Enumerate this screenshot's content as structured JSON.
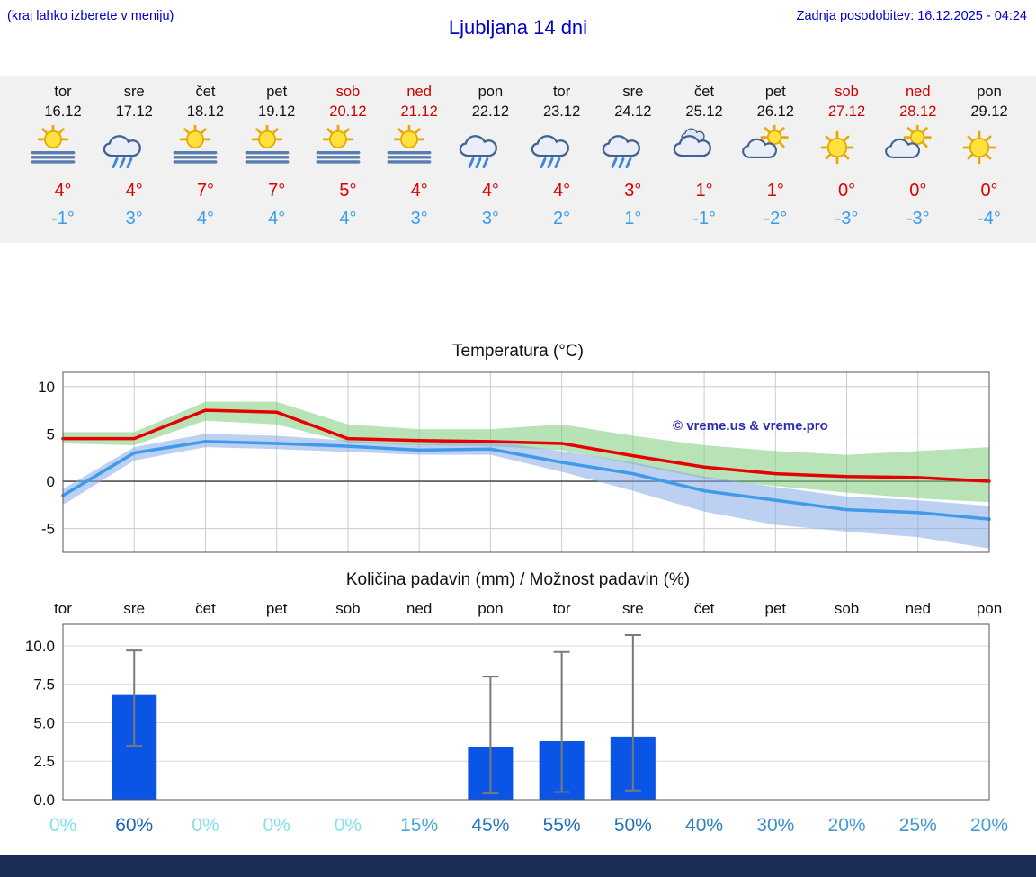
{
  "header": {
    "hint": "(kraj lahko izberete v meniju)",
    "title": "Ljubljana 14 dni",
    "updated": "Zadnja posodobitev: 16.12.2025 - 04:24"
  },
  "colors": {
    "header_text": "#0000cc",
    "strip_bg": "#f1f1f1",
    "weekend": "#cc0000",
    "weekday": "#111111",
    "high_temp": "#dd0000",
    "low_temp": "#3a9ce8",
    "footer_bar": "#1b2d55"
  },
  "forecast_days": [
    {
      "name": "tor",
      "date": "16.12",
      "weekend": false,
      "icon": "sun-fog",
      "high": "4°",
      "low": "-1°"
    },
    {
      "name": "sre",
      "date": "17.12",
      "weekend": false,
      "icon": "rain",
      "high": "4°",
      "low": "3°"
    },
    {
      "name": "čet",
      "date": "18.12",
      "weekend": false,
      "icon": "sun-fog",
      "high": "7°",
      "low": "4°"
    },
    {
      "name": "pet",
      "date": "19.12",
      "weekend": false,
      "icon": "sun-fog",
      "high": "7°",
      "low": "4°"
    },
    {
      "name": "sob",
      "date": "20.12",
      "weekend": true,
      "icon": "sun-fog",
      "high": "5°",
      "low": "4°"
    },
    {
      "name": "ned",
      "date": "21.12",
      "weekend": true,
      "icon": "sun-fog",
      "high": "4°",
      "low": "3°"
    },
    {
      "name": "pon",
      "date": "22.12",
      "weekend": false,
      "icon": "rain",
      "high": "4°",
      "low": "3°"
    },
    {
      "name": "tor",
      "date": "23.12",
      "weekend": false,
      "icon": "rain",
      "high": "4°",
      "low": "2°"
    },
    {
      "name": "sre",
      "date": "24.12",
      "weekend": false,
      "icon": "rain",
      "high": "3°",
      "low": "1°"
    },
    {
      "name": "čet",
      "date": "25.12",
      "weekend": false,
      "icon": "cloudy",
      "high": "1°",
      "low": "-1°"
    },
    {
      "name": "pet",
      "date": "26.12",
      "weekend": false,
      "icon": "partly",
      "high": "1°",
      "low": "-2°"
    },
    {
      "name": "sob",
      "date": "27.12",
      "weekend": true,
      "icon": "sun",
      "high": "0°",
      "low": "-3°"
    },
    {
      "name": "ned",
      "date": "28.12",
      "weekend": true,
      "icon": "partly",
      "high": "0°",
      "low": "-3°"
    },
    {
      "name": "pon",
      "date": "29.12",
      "weekend": false,
      "icon": "sun",
      "high": "0°",
      "low": "-4°"
    }
  ],
  "chart_data": [
    {
      "type": "line",
      "title": "Temperatura (°C)",
      "x": [
        "tor",
        "sre",
        "čet",
        "pet",
        "sob",
        "ned",
        "pon",
        "tor",
        "sre",
        "čet",
        "pet",
        "sob",
        "ned",
        "pon"
      ],
      "series": [
        {
          "name": "max temp",
          "color": "#e60000",
          "values": [
            4.5,
            4.5,
            7.5,
            7.3,
            4.5,
            4.3,
            4.2,
            4.0,
            2.7,
            1.5,
            0.8,
            0.5,
            0.4,
            0.0
          ]
        },
        {
          "name": "min temp",
          "color": "#3f9bea",
          "values": [
            -1.5,
            3.0,
            4.2,
            4.0,
            3.7,
            3.3,
            3.4,
            2.0,
            0.8,
            -1.0,
            -2.0,
            -3.0,
            -3.3,
            -4.0
          ]
        }
      ],
      "bands": [
        {
          "name": "max range",
          "color": "#7ccc7c",
          "opacity": 0.55,
          "upper": [
            5.2,
            5.2,
            8.4,
            8.4,
            6.0,
            5.5,
            5.5,
            6.0,
            4.8,
            3.8,
            3.2,
            2.8,
            3.2,
            3.6
          ],
          "lower": [
            4.0,
            3.8,
            6.4,
            6.0,
            4.1,
            3.8,
            3.7,
            3.3,
            1.8,
            0.3,
            -0.5,
            -1.2,
            -1.8,
            -2.2
          ]
        },
        {
          "name": "min range",
          "color": "#85aae8",
          "opacity": 0.55,
          "upper": [
            -0.8,
            3.6,
            5.0,
            4.8,
            4.3,
            3.9,
            4.2,
            3.2,
            2.0,
            0.5,
            -0.6,
            -1.6,
            -2.0,
            -2.6
          ],
          "lower": [
            -2.5,
            2.2,
            3.6,
            3.4,
            3.1,
            2.8,
            2.8,
            1.0,
            -1.0,
            -3.2,
            -4.6,
            -5.3,
            -5.9,
            -7.1
          ]
        }
      ],
      "ylim": [
        -7.5,
        11.5
      ],
      "yticks": [
        10,
        5,
        0,
        -5
      ],
      "grid": true,
      "legend_position": "none",
      "watermark": "© vreme.us & vreme.pro"
    },
    {
      "type": "bar",
      "title": "Količina padavin (mm) / Možnost padavin (%)",
      "categories": [
        "tor",
        "sre",
        "čet",
        "pet",
        "sob",
        "ned",
        "pon",
        "tor",
        "sre",
        "čet",
        "pet",
        "sob",
        "ned",
        "pon"
      ],
      "values": [
        0,
        6.8,
        0,
        0,
        0,
        0,
        3.4,
        3.8,
        4.1,
        0,
        0,
        0,
        0,
        0
      ],
      "whisker_low": [
        null,
        3.5,
        null,
        null,
        null,
        null,
        0.4,
        0.5,
        0.6,
        null,
        null,
        null,
        null,
        null
      ],
      "whisker_high": [
        null,
        9.7,
        null,
        null,
        null,
        null,
        8.0,
        9.6,
        10.7,
        null,
        null,
        null,
        null,
        null
      ],
      "ylim": [
        0,
        11.4
      ],
      "yticks": [
        10.0,
        7.5,
        5.0,
        2.5,
        0.0
      ],
      "bar_color": "#0a54e6",
      "whisker_color": "#7a7a7a",
      "grid": true,
      "percent_labels": [
        "0%",
        "60%",
        "0%",
        "0%",
        "0%",
        "15%",
        "45%",
        "55%",
        "50%",
        "40%",
        "30%",
        "20%",
        "25%",
        "20%"
      ],
      "percent_colors": [
        "#82dff0",
        "#1a65b2",
        "#82dff0",
        "#82dff0",
        "#82dff0",
        "#4aa6d9",
        "#2778bd",
        "#1f6cb6",
        "#2271b9",
        "#2d80c2",
        "#3990cb",
        "#459fd4",
        "#3f97cf",
        "#459fd4"
      ]
    }
  ]
}
